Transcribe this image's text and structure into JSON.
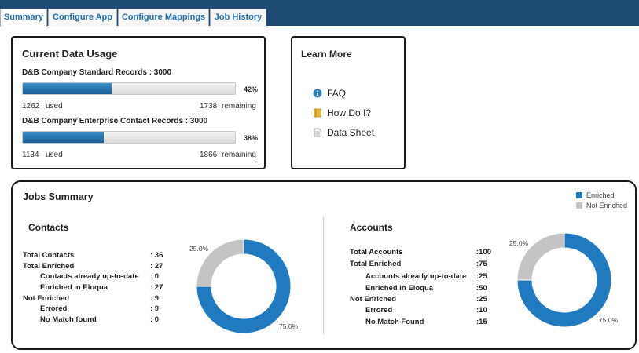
{
  "tabs": [
    {
      "label": "Summary",
      "active": true
    },
    {
      "label": "Configure App",
      "active": false
    },
    {
      "label": "Configure Mappings",
      "active": false
    },
    {
      "label": "Job History",
      "active": false
    }
  ],
  "usage": {
    "title": "Current Data Usage",
    "records": [
      {
        "label": "D&B Company Standard Records : 3000",
        "percent_label": "42%",
        "fill_fraction": 0.42,
        "used": "1262",
        "used_label": "used",
        "remaining": "1738",
        "remaining_label": "remaining"
      },
      {
        "label": "D&B Company Enterprise Contact Records : 3000",
        "percent_label": "38%",
        "fill_fraction": 0.38,
        "used": "1134",
        "used_label": "used",
        "remaining": "1866",
        "remaining_label": "remaining"
      }
    ]
  },
  "learn": {
    "title": "Learn More",
    "links": [
      {
        "label": "FAQ",
        "icon": "info-icon"
      },
      {
        "label": "How Do I?",
        "icon": "book-icon"
      },
      {
        "label": "Data Sheet",
        "icon": "document-icon"
      }
    ]
  },
  "jobs": {
    "title": "Jobs Summary",
    "legend": {
      "enriched": "Enriched",
      "not_enriched": "Not Enriched"
    },
    "colors": {
      "enriched": "#1f7ac0",
      "not_enriched": "#c4c4c4"
    },
    "contacts": {
      "title": "Contacts",
      "rows": [
        {
          "label": "Total Contacts",
          "value": ": 36"
        },
        {
          "label": "Total Enriched",
          "value": ": 27"
        },
        {
          "label": "Contacts already up-to-date",
          "value": ": 0"
        },
        {
          "label": "Enriched in Eloqua",
          "value": ": 27"
        },
        {
          "label": "Not Enriched",
          "value": ": 9"
        },
        {
          "label": "Errored",
          "value": ": 9"
        },
        {
          "label": "No Match found",
          "value": ": 0"
        }
      ],
      "pie": {
        "enriched_pct": 75.0,
        "not_enriched_pct": 25.0,
        "enriched_label": "75.0%",
        "not_enriched_label": "25.0%"
      }
    },
    "accounts": {
      "title": "Accounts",
      "rows": [
        {
          "label": "Total Accounts",
          "value": ":100"
        },
        {
          "label": "Total Enriched",
          "value": ":75"
        },
        {
          "label": "Accounts already up-to-date",
          "value": ":25"
        },
        {
          "label": "Enriched in Eloqua",
          "value": ":50"
        },
        {
          "label": "Not Enriched",
          "value": ":25"
        },
        {
          "label": "Errored",
          "value": ":10"
        },
        {
          "label": "No Match Found",
          "value": ":15"
        }
      ],
      "pie": {
        "enriched_pct": 75.0,
        "not_enriched_pct": 25.0,
        "enriched_label": "75.0%",
        "not_enriched_label": "25.0%"
      }
    }
  }
}
